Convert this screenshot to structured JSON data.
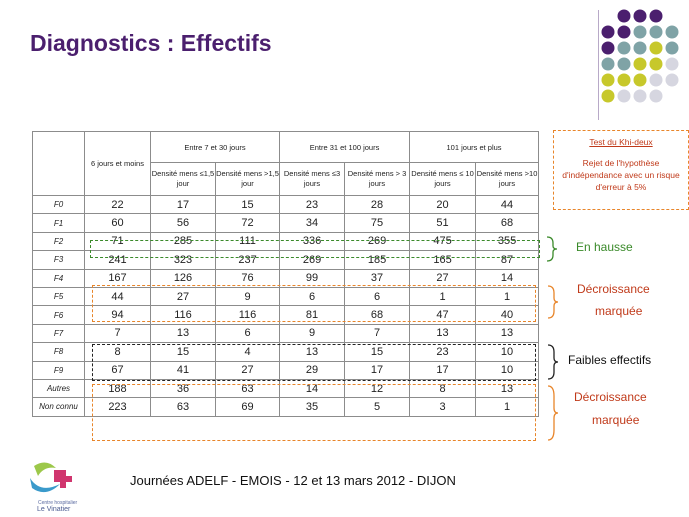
{
  "title": "Diagnostics : Effectifs",
  "table": {
    "header_first": "6 jours et moins",
    "groups": [
      "Entre 7 et 30 jours",
      "Entre 31 et 100 jours",
      "101 jours et plus"
    ],
    "subheaders": [
      [
        "Densité mens ≤1,5 jour",
        "Densité mens >1,5 jour"
      ],
      [
        "Densité mens ≤3 jours",
        "Densité mens > 3 jours"
      ],
      [
        "Densité mens ≤ 10 jours",
        "Densité mens >10 jours"
      ]
    ],
    "rows": [
      {
        "label": "F0",
        "values": [
          "22",
          "17",
          "15",
          "23",
          "28",
          "20",
          "44"
        ]
      },
      {
        "label": "F1",
        "values": [
          "60",
          "56",
          "72",
          "34",
          "75",
          "51",
          "68"
        ]
      },
      {
        "label": "F2",
        "values": [
          "71",
          "285",
          "111",
          "336",
          "269",
          "475",
          "355"
        ]
      },
      {
        "label": "F3",
        "values": [
          "241",
          "323",
          "237",
          "269",
          "185",
          "165",
          "87"
        ]
      },
      {
        "label": "F4",
        "values": [
          "167",
          "126",
          "76",
          "99",
          "37",
          "27",
          "14"
        ]
      },
      {
        "label": "F5",
        "values": [
          "44",
          "27",
          "9",
          "6",
          "6",
          "1",
          "1"
        ]
      },
      {
        "label": "F6",
        "values": [
          "94",
          "116",
          "116",
          "81",
          "68",
          "47",
          "40"
        ]
      },
      {
        "label": "F7",
        "values": [
          "7",
          "13",
          "6",
          "9",
          "7",
          "13",
          "13"
        ]
      },
      {
        "label": "F8",
        "values": [
          "8",
          "15",
          "4",
          "13",
          "15",
          "23",
          "10"
        ]
      },
      {
        "label": "F9",
        "values": [
          "67",
          "41",
          "27",
          "29",
          "17",
          "17",
          "10"
        ]
      },
      {
        "label": "Autres",
        "values": [
          "188",
          "36",
          "63",
          "14",
          "12",
          "8",
          "13"
        ]
      },
      {
        "label": "Non connu",
        "values": [
          "223",
          "63",
          "69",
          "35",
          "5",
          "3",
          "1"
        ]
      }
    ]
  },
  "annotations": {
    "en_hausse": "En hausse",
    "decroissance1_a": "Décroissance",
    "decroissance1_b": "marquée",
    "faibles": "Faibles effectifs",
    "decroissance2_a": "Décroissance",
    "decroissance2_b": "marquée"
  },
  "khi": {
    "title": "Test du Khi-deux",
    "body": "Rejet de l'hypothèse d'indépendance avec un risque d'erreur à 5%"
  },
  "footer": "Journées ADELF - EMOIS - 12 et 13 mars 2012 - DIJON",
  "logo": {
    "line1": "Centre hospitalier",
    "line2": "Le Vinatier"
  },
  "colors": {
    "title": "#4b1f6e",
    "green": "#3a8a2a",
    "orange": "#e8852a",
    "dot_purple": "#4b1f6e",
    "dot_teal": "#7fa3a6",
    "dot_yellow": "#c7c82b",
    "dot_gray": "#d6d6e0"
  }
}
